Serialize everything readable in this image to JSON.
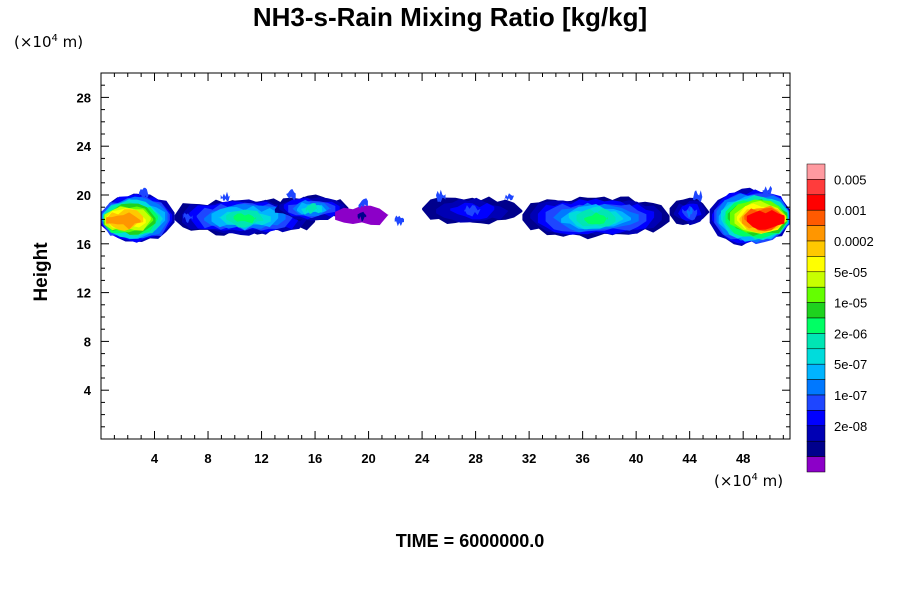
{
  "chart_data": {
    "type": "heatmap",
    "title": "NH3-s-Rain Mixing Ratio [kg/kg]",
    "ylabel": "Height",
    "xlabel": "",
    "x_unit_prefix": "(×10",
    "x_unit_exp": "4",
    "x_unit_suffix": " m)",
    "y_unit_prefix": "(×10",
    "y_unit_exp": "4",
    "y_unit_suffix": " m)",
    "xlim": [
      0,
      51.5
    ],
    "ylim": [
      0,
      30
    ],
    "xticks": [
      4,
      8,
      12,
      16,
      20,
      24,
      28,
      32,
      36,
      40,
      44,
      48
    ],
    "yticks": [
      4,
      8,
      12,
      16,
      20,
      24,
      28
    ],
    "time_label": "TIME = 6000000.0",
    "colorbar": {
      "colors": [
        "#ff9aa0",
        "#ff3c3c",
        "#ff0000",
        "#ff5a00",
        "#ff9600",
        "#ffc800",
        "#ffff00",
        "#c8ff00",
        "#64ff00",
        "#1ed21e",
        "#00ff64",
        "#00e6b4",
        "#00dcdc",
        "#00b4ff",
        "#0078ff",
        "#1e46ff",
        "#0000ff",
        "#0000b4",
        "#00008c",
        "#8c00c8"
      ],
      "labels": [
        "0.005",
        "0.001",
        "0.0002",
        "5e-05",
        "1e-05",
        "2e-06",
        "5e-07",
        "1e-07",
        "2e-08"
      ]
    },
    "regions": [
      {
        "x": [
          0,
          5.5
        ],
        "y_bot": 16.2,
        "y_top": 20.0,
        "level": 2,
        "core": 12,
        "hot": 4
      },
      {
        "x": [
          5.5,
          16
        ],
        "y_bot": 16.8,
        "y_top": 19.6,
        "level": 1,
        "core": 9
      },
      {
        "x": [
          13,
          18.5
        ],
        "y_bot": 18.0,
        "y_top": 19.8,
        "level": 1,
        "core": 8
      },
      {
        "x": [
          17.5,
          21.5
        ],
        "y_bot": 17.6,
        "y_top": 19.0,
        "level": 0,
        "core": 1
      },
      {
        "x": [
          24,
          31.5
        ],
        "y_bot": 17.7,
        "y_top": 19.8,
        "level": 1,
        "core": 4
      },
      {
        "x": [
          31.5,
          42.5
        ],
        "y_bot": 16.6,
        "y_top": 19.8,
        "level": 1,
        "core": 9
      },
      {
        "x": [
          42.5,
          45.5
        ],
        "y_bot": 17.6,
        "y_top": 19.6,
        "level": 1,
        "core": 5
      },
      {
        "x": [
          45.5,
          51.5
        ],
        "y_bot": 16.0,
        "y_top": 20.4,
        "level": 2,
        "core": 11,
        "hot": 2
      }
    ]
  }
}
